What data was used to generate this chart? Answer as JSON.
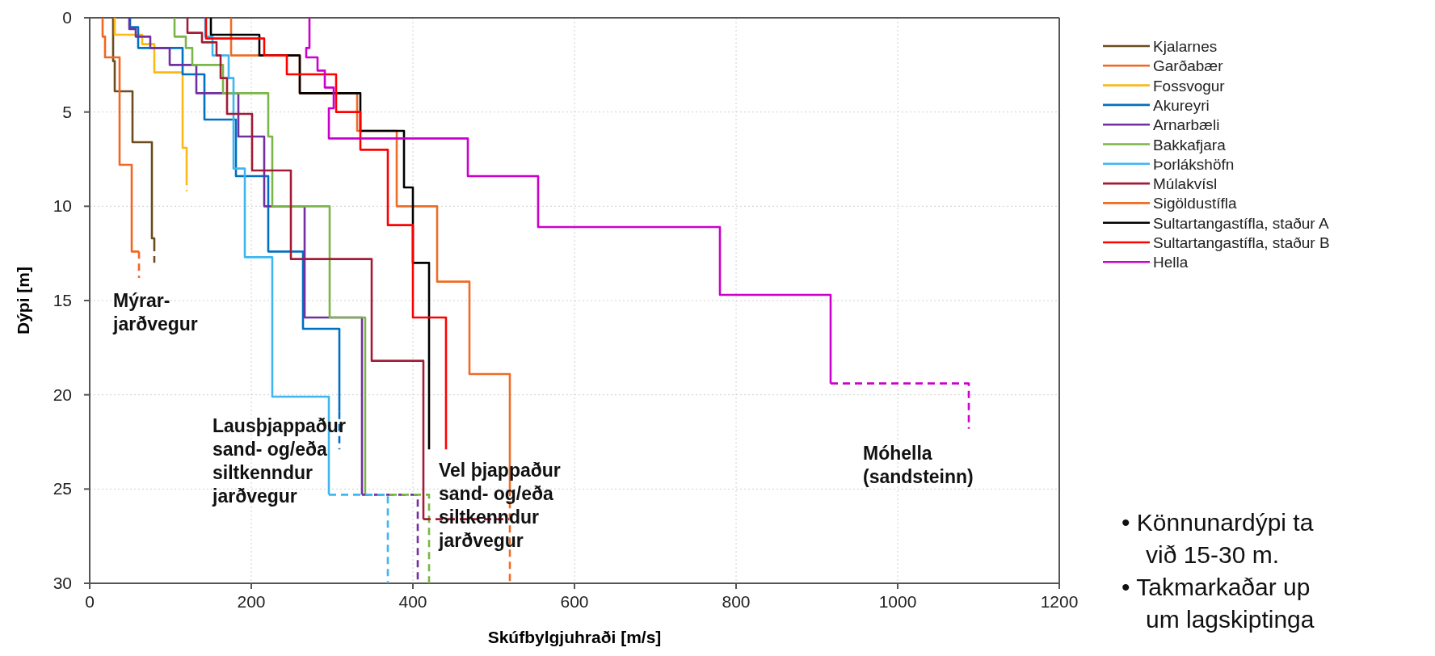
{
  "chart_data": {
    "type": "line",
    "xlabel": "Skúfbylgjuhraði [m/s]",
    "ylabel": "Dýpi [m]",
    "xlim": [
      0,
      1200
    ],
    "ylim": [
      30,
      0
    ],
    "xticks": [
      0,
      200,
      400,
      600,
      800,
      1000,
      1200
    ],
    "yticks": [
      0,
      5,
      10,
      15,
      20,
      25,
      30
    ],
    "grid": true,
    "legend": "right",
    "line_style": "solid",
    "series": [
      {
        "name": "Kjalarnes",
        "color": "#6b4c1e",
        "x": [
          29,
          29,
          31,
          31,
          53,
          53,
          77,
          77,
          80,
          80
        ],
        "values": [
          0,
          2.3,
          2.3,
          3.9,
          3.9,
          6.6,
          6.6,
          11.7,
          11.7,
          12.0
        ]
      },
      {
        "name": "Garðabær",
        "color": "#f26522",
        "x": [
          16,
          16,
          19,
          19,
          37,
          37,
          52,
          52,
          61
        ],
        "values": [
          0,
          1.0,
          1.0,
          2.1,
          2.1,
          7.8,
          7.8,
          12.4,
          12.4
        ]
      },
      {
        "name": "Fossvogur",
        "color": "#fbb917",
        "x": [
          31,
          31,
          65,
          65,
          80,
          80,
          115,
          115,
          120,
          120
        ],
        "values": [
          0,
          0.9,
          0.9,
          1.4,
          1.4,
          2.9,
          2.9,
          6.9,
          6.9,
          8.5
        ]
      },
      {
        "name": "Akureyri",
        "color": "#0070c0",
        "x": [
          50,
          50,
          60,
          60,
          115,
          115,
          142,
          142,
          181,
          181,
          221,
          221,
          264,
          264,
          309,
          309
        ],
        "values": [
          0,
          0.5,
          0.5,
          1.6,
          1.6,
          3.0,
          3.0,
          5.4,
          5.4,
          8.4,
          8.4,
          12.4,
          12.4,
          16.5,
          16.5,
          20.9
        ]
      },
      {
        "name": "Arnarbæli",
        "color": "#7030a0",
        "x": [
          49,
          49,
          57,
          57,
          75,
          75,
          99,
          99,
          132,
          132,
          184,
          184,
          216,
          216,
          266,
          266,
          337,
          337
        ],
        "values": [
          0,
          0.6,
          0.6,
          1.0,
          1.0,
          1.6,
          1.6,
          2.5,
          2.5,
          4.0,
          4.0,
          6.3,
          6.3,
          10.0,
          10.0,
          15.9,
          15.9,
          25.3
        ]
      },
      {
        "name": "Bakkafjara",
        "color": "#7ab648",
        "x": [
          105,
          105,
          119,
          119,
          127,
          127,
          165,
          165,
          221,
          221,
          226,
          226,
          297,
          297,
          341,
          341
        ],
        "values": [
          0,
          1.0,
          1.0,
          1.6,
          1.6,
          2.5,
          2.5,
          4.0,
          4.0,
          6.3,
          6.3,
          10.0,
          10.0,
          15.9,
          15.9,
          25.3
        ]
      },
      {
        "name": "Þorlákshöfn",
        "color": "#3fb6f0",
        "x": [
          143,
          143,
          152,
          152,
          172,
          172,
          178,
          178,
          192,
          192,
          226,
          226,
          296,
          296
        ],
        "values": [
          0,
          1.0,
          1.0,
          2.0,
          2.0,
          3.2,
          3.2,
          8.0,
          8.0,
          12.7,
          12.7,
          20.1,
          20.1,
          25.3
        ]
      },
      {
        "name": "Múlakvísl",
        "color": "#a31c37",
        "x": [
          121,
          121,
          139,
          139,
          157,
          157,
          162,
          162,
          170,
          170,
          201,
          201,
          249,
          249,
          349,
          349,
          413,
          413
        ],
        "values": [
          0,
          0.8,
          0.8,
          1.3,
          1.3,
          2.0,
          2.0,
          3.2,
          3.2,
          5.1,
          5.1,
          8.1,
          8.1,
          12.8,
          12.8,
          18.2,
          18.2,
          26.6
        ]
      },
      {
        "name": "Sigöldustífla",
        "color": "#ed6d25",
        "x": [
          175,
          175,
          260,
          260,
          331,
          331,
          380,
          380,
          430,
          430,
          470,
          470,
          520,
          520
        ],
        "values": [
          0,
          2.0,
          2.0,
          4.0,
          4.0,
          6.0,
          6.0,
          10.0,
          10.0,
          14.0,
          14.0,
          18.9,
          18.9,
          25.0
        ]
      },
      {
        "name": "Sultartangastífla, staður A",
        "color": "#000000",
        "x": [
          150,
          150,
          210,
          210,
          260,
          260,
          335,
          335,
          389,
          389,
          400,
          400,
          420,
          420
        ],
        "values": [
          0,
          0.9,
          0.9,
          2.0,
          2.0,
          4.0,
          4.0,
          6.0,
          6.0,
          9.0,
          9.0,
          13.0,
          13.0,
          22.9
        ]
      },
      {
        "name": "Sultartangastífla, staður B",
        "color": "#ff0000",
        "x": [
          144,
          144,
          216,
          216,
          244,
          244,
          305,
          305,
          335,
          335,
          369,
          369,
          400,
          400,
          441,
          441
        ],
        "values": [
          0,
          1.1,
          1.1,
          2.0,
          2.0,
          3.0,
          3.0,
          5.0,
          5.0,
          7.0,
          7.0,
          11.0,
          11.0,
          15.9,
          15.9,
          22.9
        ]
      },
      {
        "name": "Hella",
        "color": "#cc00cc",
        "x": [
          272,
          272,
          268,
          268,
          282,
          282,
          291,
          291,
          302,
          302,
          296,
          296,
          468,
          468,
          555,
          555,
          780,
          780,
          917,
          917
        ],
        "values": [
          0,
          1.6,
          1.6,
          2.1,
          2.1,
          2.8,
          2.8,
          3.7,
          3.7,
          4.8,
          4.8,
          6.4,
          6.4,
          8.4,
          8.4,
          11.1,
          11.1,
          14.7,
          14.7,
          19.4
        ]
      },
      {
        "color": "#6b4c1e",
        "line_style": "dashed",
        "x": [
          80,
          80
        ],
        "values": [
          12.0,
          13.0
        ]
      },
      {
        "color": "#f26522",
        "line_style": "dashed",
        "x": [
          61,
          61
        ],
        "values": [
          12.4,
          13.8
        ]
      },
      {
        "color": "#fbb917",
        "line_style": "dashed",
        "x": [
          120,
          120
        ],
        "values": [
          8.5,
          9.2
        ]
      },
      {
        "color": "#0070c0",
        "line_style": "dashed",
        "x": [
          309,
          309
        ],
        "values": [
          20.9,
          22.9
        ]
      },
      {
        "color": "#7030a0",
        "line_style": "dashed",
        "x": [
          337,
          406,
          406
        ],
        "values": [
          25.3,
          25.3,
          30
        ]
      },
      {
        "color": "#7ab648",
        "line_style": "dashed",
        "x": [
          341,
          420,
          420
        ],
        "values": [
          25.3,
          25.3,
          30
        ]
      },
      {
        "color": "#3fb6f0",
        "line_style": "dashed",
        "x": [
          296,
          369,
          369
        ],
        "values": [
          25.3,
          25.3,
          30
        ]
      },
      {
        "color": "#a31c37",
        "line_style": "dashed",
        "x": [
          413,
          521
        ],
        "values": [
          26.6,
          26.6
        ]
      },
      {
        "color": "#ed6d25",
        "line_style": "dashed",
        "x": [
          520,
          520
        ],
        "values": [
          25.0,
          30
        ]
      },
      {
        "color": "#cc00cc",
        "line_style": "dashed",
        "x": [
          917,
          1088,
          1088
        ],
        "values": [
          19.4,
          19.4,
          21.8
        ]
      }
    ],
    "annotations": [
      "Mýrar-\njarðvegur",
      "Lausþjappaður\nsand- og/eða\nsiltkenndur\njarðvegur",
      "Vel þjappaður\nsand- og/eða\nsiltkenndur\njarðvegur",
      "Móhella\n(sandsteinn)",
      "• Könnunardýpi ta\nvið 15-30 m.",
      "• Takmarkaðar up\num lagskiptinga"
    ]
  }
}
